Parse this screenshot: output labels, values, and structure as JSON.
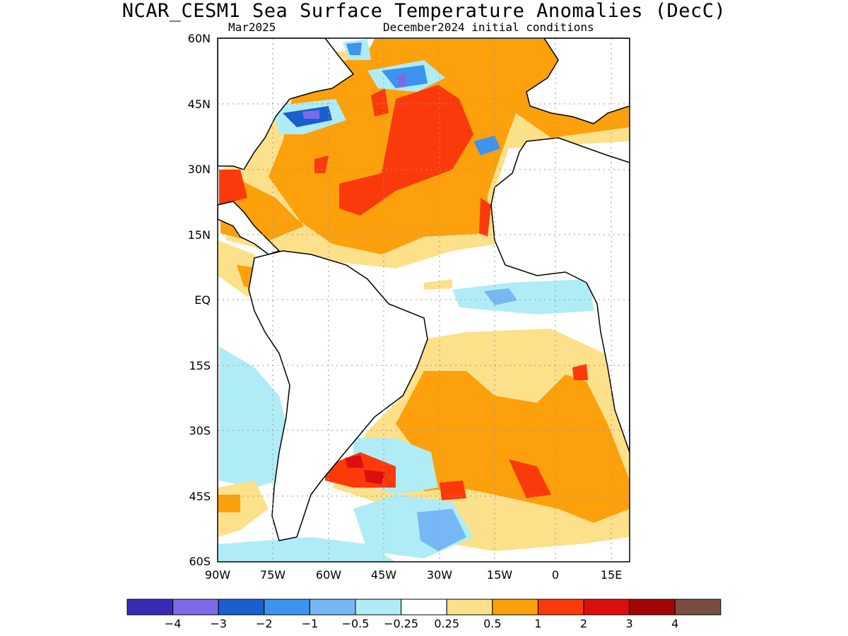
{
  "title": "NCAR_CESM1 Sea Surface Temperature Anomalies (DecC)",
  "subtitle_left": "Mar2025",
  "subtitle_right": "December2024 initial conditions",
  "lat_labels": [
    "60N",
    "45N",
    "30N",
    "15N",
    "EQ",
    "15S",
    "30S",
    "45S",
    "60S"
  ],
  "lon_labels": [
    "90W",
    "75W",
    "60W",
    "45W",
    "30W",
    "15W",
    "0",
    "15E"
  ],
  "colorbar": {
    "colors": [
      "#3a2ab5",
      "#7c6be6",
      "#1a5fcf",
      "#3c94ef",
      "#76b8f5",
      "#b0ecf5",
      "#ffffff",
      "#fde08a",
      "#fca00c",
      "#fb3a0c",
      "#dc0f0f",
      "#a30505",
      "#7a4d43"
    ],
    "labels": [
      "−4",
      "−3",
      "−2",
      "−1",
      "−0.5",
      "−0.25",
      "0.25",
      "0.5",
      "1",
      "2",
      "3",
      "4"
    ]
  },
  "map_data": {
    "region": "Atlantic Ocean",
    "lat_range": [
      "60S",
      "60N"
    ],
    "lon_range": [
      "90W",
      "15E"
    ],
    "units": "DecC"
  }
}
